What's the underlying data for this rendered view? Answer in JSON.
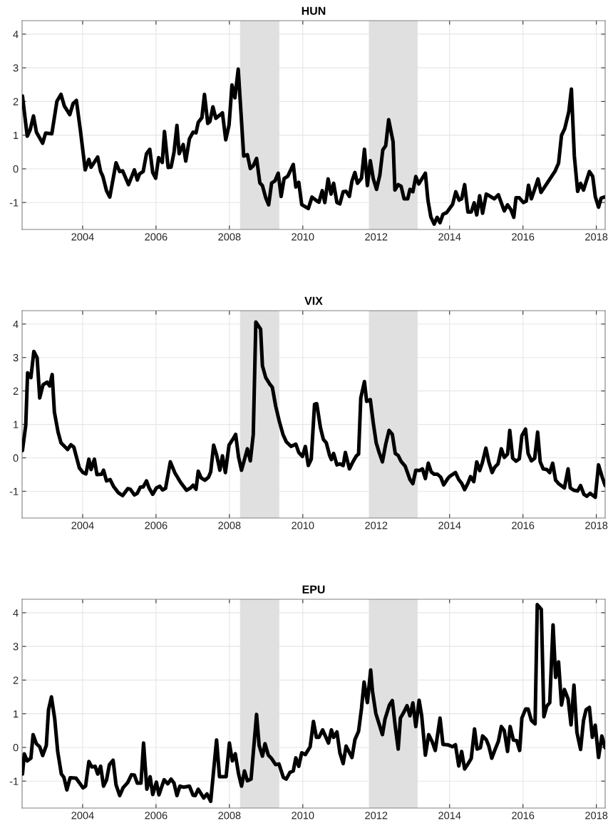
{
  "chart_data": [
    {
      "type": "line",
      "title": "HUN",
      "xlim": [
        2002.35,
        2018.24
      ],
      "ylim": [
        -1.8,
        4.4
      ],
      "xticks": [
        2004,
        2006,
        2008,
        2010,
        2012,
        2014,
        2016,
        2018
      ],
      "yticks": [
        -1,
        0,
        1,
        2,
        3,
        4
      ],
      "grid": true,
      "line_style": "solid",
      "bands": [
        {
          "axis": "x",
          "from": 2008.29,
          "to": 2009.36,
          "color": "#e0e0e0"
        },
        {
          "axis": "x",
          "from": 2011.8,
          "to": 2013.13,
          "color": "#e0e0e0"
        }
      ],
      "x": [
        2002.36,
        2002.49,
        2002.57,
        2002.66,
        2002.74,
        2002.91,
        2002.99,
        2003.16,
        2003.3,
        2003.41,
        2003.5,
        2003.65,
        2003.74,
        2003.83,
        2003.94,
        2004.07,
        2004.17,
        2004.23,
        2004.41,
        2004.49,
        2004.55,
        2004.65,
        2004.74,
        2004.91,
        2005.01,
        2005.09,
        2005.25,
        2005.41,
        2005.49,
        2005.55,
        2005.65,
        2005.74,
        2005.83,
        2005.91,
        2005.99,
        2006.07,
        2006.17,
        2006.23,
        2006.33,
        2006.41,
        2006.49,
        2006.57,
        2006.63,
        2006.74,
        2006.81,
        2006.91,
        2007.01,
        2007.09,
        2007.15,
        2007.25,
        2007.32,
        2007.41,
        2007.47,
        2007.55,
        2007.63,
        2007.81,
        2007.9,
        2007.99,
        2008.07,
        2008.15,
        2008.24,
        2008.39,
        2008.49,
        2008.57,
        2008.65,
        2008.74,
        2008.83,
        2008.9,
        2008.99,
        2009.07,
        2009.15,
        2009.24,
        2009.33,
        2009.41,
        2009.49,
        2009.59,
        2009.74,
        2009.81,
        2009.89,
        2009.97,
        2010.15,
        2010.25,
        2010.39,
        2010.44,
        2010.53,
        2010.6,
        2010.69,
        2010.77,
        2010.84,
        2010.93,
        2011.01,
        2011.1,
        2011.18,
        2011.27,
        2011.34,
        2011.42,
        2011.49,
        2011.6,
        2011.68,
        2011.76,
        2011.84,
        2011.92,
        2012.01,
        2012.1,
        2012.18,
        2012.26,
        2012.34,
        2012.46,
        2012.51,
        2012.6,
        2012.68,
        2012.76,
        2012.86,
        2012.92,
        2013.0,
        2013.08,
        2013.16,
        2013.34,
        2013.41,
        2013.49,
        2013.58,
        2013.66,
        2013.74,
        2013.82,
        2013.92,
        2014.08,
        2014.17,
        2014.26,
        2014.33,
        2014.41,
        2014.5,
        2014.59,
        2014.67,
        2014.74,
        2014.82,
        2014.9,
        2015.0,
        2015.07,
        2015.22,
        2015.33,
        2015.49,
        2015.58,
        2015.67,
        2015.75,
        2015.81,
        2015.9,
        2016.01,
        2016.09,
        2016.15,
        2016.23,
        2016.33,
        2016.41,
        2016.49,
        2016.87,
        2016.97,
        2017.05,
        2017.14,
        2017.25,
        2017.32,
        2017.4,
        2017.49,
        2017.57,
        2017.65,
        2017.81,
        2017.9,
        2017.97,
        2018.06,
        2018.13,
        2018.21
      ],
      "series": [
        {
          "color": "#000000",
          "values": [
            2.16,
            0.97,
            1.16,
            1.57,
            1.09,
            0.76,
            1.06,
            1.04,
            2.01,
            2.21,
            1.87,
            1.61,
            1.94,
            2.03,
            1.13,
            -0.03,
            0.28,
            0.05,
            0.35,
            -0.08,
            -0.22,
            -0.65,
            -0.84,
            0.18,
            -0.08,
            -0.06,
            -0.47,
            -0.03,
            -0.33,
            -0.15,
            -0.08,
            0.45,
            0.58,
            -0.11,
            -0.28,
            0.33,
            0.19,
            1.11,
            0.04,
            0.05,
            0.49,
            1.29,
            0.45,
            0.72,
            0.23,
            0.89,
            1.09,
            1.07,
            1.38,
            1.52,
            2.21,
            1.35,
            1.41,
            1.84,
            1.5,
            1.66,
            0.86,
            1.3,
            2.49,
            2.11,
            2.96,
            0.38,
            0.42,
            0.01,
            0.09,
            0.31,
            -0.42,
            -0.5,
            -0.86,
            -1.07,
            -0.42,
            -0.36,
            -0.13,
            -0.82,
            -0.29,
            -0.22,
            0.13,
            -0.54,
            -0.4,
            -1.06,
            -1.18,
            -0.84,
            -0.96,
            -0.99,
            -0.65,
            -1.0,
            -0.3,
            -0.75,
            -0.43,
            -1.0,
            -1.04,
            -0.68,
            -0.67,
            -0.82,
            -0.36,
            -0.11,
            -0.43,
            -0.28,
            0.58,
            -0.5,
            0.24,
            -0.29,
            -0.61,
            -0.18,
            0.56,
            0.69,
            1.46,
            0.81,
            -0.63,
            -0.47,
            -0.52,
            -0.89,
            -0.89,
            -0.61,
            -0.68,
            -0.23,
            -0.45,
            -0.13,
            -0.93,
            -1.43,
            -1.64,
            -1.44,
            -1.6,
            -1.35,
            -1.3,
            -1.06,
            -0.68,
            -0.93,
            -0.89,
            -0.47,
            -1.28,
            -1.28,
            -1.01,
            -1.37,
            -0.8,
            -1.32,
            -0.75,
            -0.79,
            -0.89,
            -0.77,
            -1.25,
            -1.07,
            -1.21,
            -1.44,
            -0.86,
            -0.86,
            -1.0,
            -0.96,
            -0.49,
            -0.89,
            -0.57,
            -0.3,
            -0.7,
            -0.08,
            0.17,
            0.99,
            1.2,
            1.7,
            2.37,
            0.38,
            -0.67,
            -0.43,
            -0.63,
            -0.08,
            -0.22,
            -0.82,
            -1.14,
            -0.87,
            -0.84
          ]
        }
      ]
    },
    {
      "type": "line",
      "title": "VIX",
      "xlim": [
        2002.35,
        2018.24
      ],
      "ylim": [
        -1.8,
        4.4
      ],
      "xticks": [
        2004,
        2006,
        2008,
        2010,
        2012,
        2014,
        2016,
        2018
      ],
      "yticks": [
        -1,
        0,
        1,
        2,
        3,
        4
      ],
      "grid": true,
      "line_style": "solid",
      "bands": [
        {
          "axis": "x",
          "from": 2008.29,
          "to": 2009.36,
          "color": "#e0e0e0"
        },
        {
          "axis": "x",
          "from": 2011.8,
          "to": 2013.13,
          "color": "#e0e0e0"
        }
      ],
      "x": [
        2002.36,
        2002.45,
        2002.5,
        2002.59,
        2002.67,
        2002.76,
        2002.83,
        2002.92,
        2003.03,
        2003.1,
        2003.17,
        2003.23,
        2003.33,
        2003.41,
        2003.59,
        2003.68,
        2003.76,
        2003.91,
        2004.01,
        2004.09,
        2004.17,
        2004.23,
        2004.32,
        2004.39,
        2004.52,
        2004.57,
        2004.65,
        2004.75,
        2004.84,
        2004.97,
        2005.09,
        2005.23,
        2005.3,
        2005.41,
        2005.49,
        2005.57,
        2005.65,
        2005.74,
        2005.81,
        2005.91,
        2006.01,
        2006.1,
        2006.18,
        2006.26,
        2006.39,
        2006.51,
        2006.66,
        2006.83,
        2006.94,
        2007.01,
        2007.09,
        2007.15,
        2007.23,
        2007.33,
        2007.43,
        2007.49,
        2007.57,
        2007.65,
        2007.74,
        2007.81,
        2007.89,
        2007.99,
        2008.09,
        2008.17,
        2008.25,
        2008.33,
        2008.49,
        2008.57,
        2008.65,
        2008.72,
        2008.85,
        2008.9,
        2008.99,
        2009.09,
        2009.17,
        2009.26,
        2009.36,
        2009.46,
        2009.55,
        2009.68,
        2009.81,
        2009.89,
        2009.99,
        2010.07,
        2010.15,
        2010.23,
        2010.32,
        2010.38,
        2010.48,
        2010.56,
        2010.64,
        2010.73,
        2010.78,
        2010.84,
        2010.93,
        2011.01,
        2011.1,
        2011.16,
        2011.27,
        2011.38,
        2011.46,
        2011.52,
        2011.58,
        2011.68,
        2011.74,
        2011.84,
        2011.92,
        2012.0,
        2012.08,
        2012.17,
        2012.26,
        2012.35,
        2012.44,
        2012.52,
        2012.6,
        2012.68,
        2012.79,
        2012.92,
        2013.0,
        2013.08,
        2013.18,
        2013.26,
        2013.34,
        2013.42,
        2013.5,
        2013.58,
        2013.67,
        2013.76,
        2013.84,
        2013.95,
        2014.01,
        2014.16,
        2014.25,
        2014.33,
        2014.41,
        2014.5,
        2014.57,
        2014.66,
        2014.74,
        2014.82,
        2014.89,
        2014.99,
        2015.07,
        2015.16,
        2015.23,
        2015.32,
        2015.41,
        2015.49,
        2015.58,
        2015.64,
        2015.72,
        2015.81,
        2015.9,
        2015.97,
        2016.07,
        2016.14,
        2016.23,
        2016.32,
        2016.4,
        2016.47,
        2016.55,
        2016.65,
        2016.73,
        2016.81,
        2016.89,
        2016.97,
        2017.13,
        2017.23,
        2017.29,
        2017.39,
        2017.49,
        2017.57,
        2017.66,
        2017.74,
        2017.83,
        2017.97,
        2018.06,
        2018.16,
        2018.24
      ],
      "series": [
        {
          "color": "#000000",
          "values": [
            0.22,
            0.98,
            2.54,
            2.4,
            3.18,
            2.99,
            1.79,
            2.18,
            2.26,
            2.15,
            2.49,
            1.37,
            0.77,
            0.45,
            0.25,
            0.39,
            0.32,
            -0.3,
            -0.44,
            -0.48,
            -0.04,
            -0.35,
            -0.04,
            -0.5,
            -0.49,
            -0.37,
            -0.69,
            -0.65,
            -0.85,
            -1.04,
            -1.13,
            -0.92,
            -0.94,
            -1.11,
            -1.06,
            -0.88,
            -0.87,
            -0.69,
            -0.9,
            -1.09,
            -0.9,
            -0.85,
            -0.96,
            -0.91,
            -0.12,
            -0.44,
            -0.72,
            -0.97,
            -0.9,
            -0.82,
            -0.94,
            -0.4,
            -0.6,
            -0.67,
            -0.58,
            -0.42,
            0.38,
            0.09,
            -0.37,
            0.06,
            -0.44,
            0.38,
            0.55,
            0.7,
            0.02,
            -0.37,
            0.27,
            -0.09,
            0.7,
            4.06,
            3.85,
            2.75,
            2.4,
            2.22,
            2.11,
            1.55,
            1.09,
            0.7,
            0.48,
            0.34,
            0.41,
            0.16,
            0.04,
            0.34,
            -0.23,
            -0.04,
            1.6,
            1.62,
            0.91,
            0.55,
            0.45,
            0.07,
            -0.05,
            0.13,
            -0.21,
            -0.18,
            -0.23,
            0.16,
            -0.33,
            -0.09,
            0.06,
            0.11,
            1.79,
            2.28,
            1.69,
            1.74,
            1.05,
            0.45,
            0.16,
            -0.12,
            0.41,
            0.82,
            0.7,
            0.13,
            0.07,
            -0.11,
            -0.25,
            -0.65,
            -0.77,
            -0.37,
            -0.38,
            -0.33,
            -0.62,
            -0.16,
            -0.42,
            -0.49,
            -0.49,
            -0.58,
            -0.81,
            -0.62,
            -0.55,
            -0.44,
            -0.65,
            -0.76,
            -0.95,
            -0.76,
            -0.56,
            -0.71,
            -0.12,
            -0.38,
            -0.16,
            0.29,
            -0.12,
            -0.44,
            -0.28,
            -0.18,
            0.27,
            0.01,
            0.11,
            0.82,
            -0.01,
            -0.1,
            -0.03,
            0.66,
            0.86,
            0.13,
            -0.09,
            -0.01,
            0.77,
            -0.12,
            -0.33,
            -0.35,
            -0.44,
            -0.16,
            -0.67,
            -0.77,
            -0.9,
            -0.33,
            -0.9,
            -0.97,
            -0.99,
            -0.83,
            -1.09,
            -1.15,
            -1.06,
            -1.18,
            -0.21,
            -0.58,
            -0.83
          ]
        }
      ]
    },
    {
      "type": "line",
      "title": "EPU",
      "xlim": [
        2002.35,
        2018.24
      ],
      "ylim": [
        -1.8,
        4.4
      ],
      "xticks": [
        2004,
        2006,
        2008,
        2010,
        2012,
        2014,
        2016,
        2018
      ],
      "yticks": [
        -1,
        0,
        1,
        2,
        3,
        4
      ],
      "grid": true,
      "line_style": "solid",
      "bands": [
        {
          "axis": "x",
          "from": 2008.29,
          "to": 2009.36,
          "color": "#e0e0e0"
        },
        {
          "axis": "x",
          "from": 2011.8,
          "to": 2013.13,
          "color": "#e0e0e0"
        }
      ],
      "x": [
        2002.36,
        2002.41,
        2002.49,
        2002.59,
        2002.65,
        2002.74,
        2002.83,
        2002.91,
        2003.01,
        2003.07,
        2003.15,
        2003.24,
        2003.32,
        2003.42,
        2003.49,
        2003.57,
        2003.66,
        2003.82,
        2004.01,
        2004.08,
        2004.17,
        2004.25,
        2004.34,
        2004.41,
        2004.49,
        2004.57,
        2004.65,
        2004.73,
        2004.83,
        2004.91,
        2005.01,
        2005.1,
        2005.23,
        2005.33,
        2005.41,
        2005.49,
        2005.59,
        2005.66,
        2005.75,
        2005.84,
        2005.91,
        2006.01,
        2006.08,
        2006.22,
        2006.32,
        2006.41,
        2006.49,
        2006.57,
        2006.65,
        2006.75,
        2006.91,
        2007.01,
        2007.07,
        2007.15,
        2007.3,
        2007.39,
        2007.49,
        2007.57,
        2007.65,
        2007.73,
        2007.91,
        2008.0,
        2008.08,
        2008.16,
        2008.25,
        2008.33,
        2008.41,
        2008.49,
        2008.59,
        2008.74,
        2008.81,
        2008.9,
        2008.97,
        2009.06,
        2009.15,
        2009.26,
        2009.35,
        2009.47,
        2009.55,
        2009.65,
        2009.74,
        2009.81,
        2009.89,
        2009.97,
        2010.07,
        2010.2,
        2010.29,
        2010.37,
        2010.44,
        2010.54,
        2010.7,
        2010.78,
        2010.84,
        2010.93,
        2011.01,
        2011.1,
        2011.18,
        2011.34,
        2011.42,
        2011.52,
        2011.6,
        2011.67,
        2011.76,
        2011.85,
        2011.9,
        2011.99,
        2012.17,
        2012.24,
        2012.36,
        2012.44,
        2012.52,
        2012.6,
        2012.66,
        2012.75,
        2012.84,
        2012.92,
        2013.0,
        2013.08,
        2013.17,
        2013.24,
        2013.34,
        2013.43,
        2013.53,
        2013.61,
        2013.74,
        2013.82,
        2013.95,
        2014.08,
        2014.16,
        2014.25,
        2014.33,
        2014.41,
        2014.5,
        2014.59,
        2014.68,
        2014.75,
        2014.84,
        2014.9,
        2015.0,
        2015.07,
        2015.15,
        2015.23,
        2015.33,
        2015.41,
        2015.49,
        2015.58,
        2015.65,
        2015.74,
        2015.83,
        2015.91,
        2015.97,
        2016.07,
        2016.14,
        2016.23,
        2016.33,
        2016.39,
        2016.5,
        2016.57,
        2016.65,
        2016.73,
        2016.82,
        2016.89,
        2016.97,
        2017.05,
        2017.13,
        2017.23,
        2017.31,
        2017.39,
        2017.47,
        2017.57,
        2017.65,
        2017.72,
        2017.81,
        2017.89,
        2017.97,
        2018.06,
        2018.15,
        2018.24
      ],
      "series": [
        {
          "color": "#000000",
          "values": [
            -0.79,
            -0.19,
            -0.4,
            -0.32,
            0.38,
            0.11,
            0.02,
            -0.24,
            0.06,
            1.12,
            1.5,
            0.84,
            -0.12,
            -0.79,
            -0.89,
            -1.26,
            -0.9,
            -0.91,
            -1.2,
            -1.15,
            -0.42,
            -0.58,
            -0.56,
            -0.79,
            -0.56,
            -1.15,
            -0.97,
            -0.51,
            -0.38,
            -1.11,
            -1.43,
            -1.2,
            -1.04,
            -0.81,
            -0.82,
            -1.06,
            -1.06,
            0.13,
            -1.24,
            -0.87,
            -1.4,
            -1.03,
            -1.41,
            -0.96,
            -1.08,
            -0.94,
            -1.06,
            -1.43,
            -1.15,
            -1.18,
            -1.15,
            -1.42,
            -1.43,
            -1.24,
            -1.5,
            -1.38,
            -1.6,
            -0.69,
            0.22,
            -0.87,
            -0.87,
            0.13,
            -0.4,
            -0.19,
            -0.79,
            -1.15,
            -0.7,
            -0.99,
            -0.94,
            0.98,
            0.06,
            -0.26,
            0.11,
            -0.23,
            -0.33,
            -0.51,
            -0.49,
            -0.89,
            -0.94,
            -0.74,
            -0.7,
            -0.31,
            -0.56,
            -0.16,
            -0.21,
            0.02,
            0.77,
            0.3,
            0.3,
            0.52,
            0.13,
            0.52,
            0.3,
            0.46,
            -0.16,
            -0.48,
            0.04,
            -0.3,
            0.23,
            0.48,
            1.16,
            1.94,
            1.33,
            2.3,
            1.66,
            1.01,
            0.38,
            0.84,
            1.26,
            1.39,
            0.62,
            -0.05,
            0.87,
            1.04,
            1.24,
            0.94,
            1.32,
            0.62,
            1.4,
            0.94,
            -0.23,
            0.38,
            0.16,
            -0.09,
            0.87,
            0.09,
            0.08,
            0.02,
            0.08,
            -0.55,
            -0.12,
            -0.64,
            -0.49,
            -0.33,
            0.55,
            -0.05,
            -0.01,
            0.34,
            0.23,
            0.04,
            -0.32,
            -0.09,
            0.18,
            0.62,
            0.5,
            -0.12,
            0.62,
            0.22,
            0.2,
            -0.09,
            0.87,
            1.14,
            1.14,
            0.8,
            0.7,
            4.24,
            4.1,
            0.91,
            1.23,
            1.33,
            3.64,
            2.08,
            2.54,
            1.26,
            1.72,
            1.44,
            0.67,
            1.85,
            0.45,
            -0.06,
            0.8,
            1.12,
            1.19,
            0.3,
            0.66,
            -0.3,
            0.34,
            -0.01
          ]
        }
      ]
    }
  ]
}
